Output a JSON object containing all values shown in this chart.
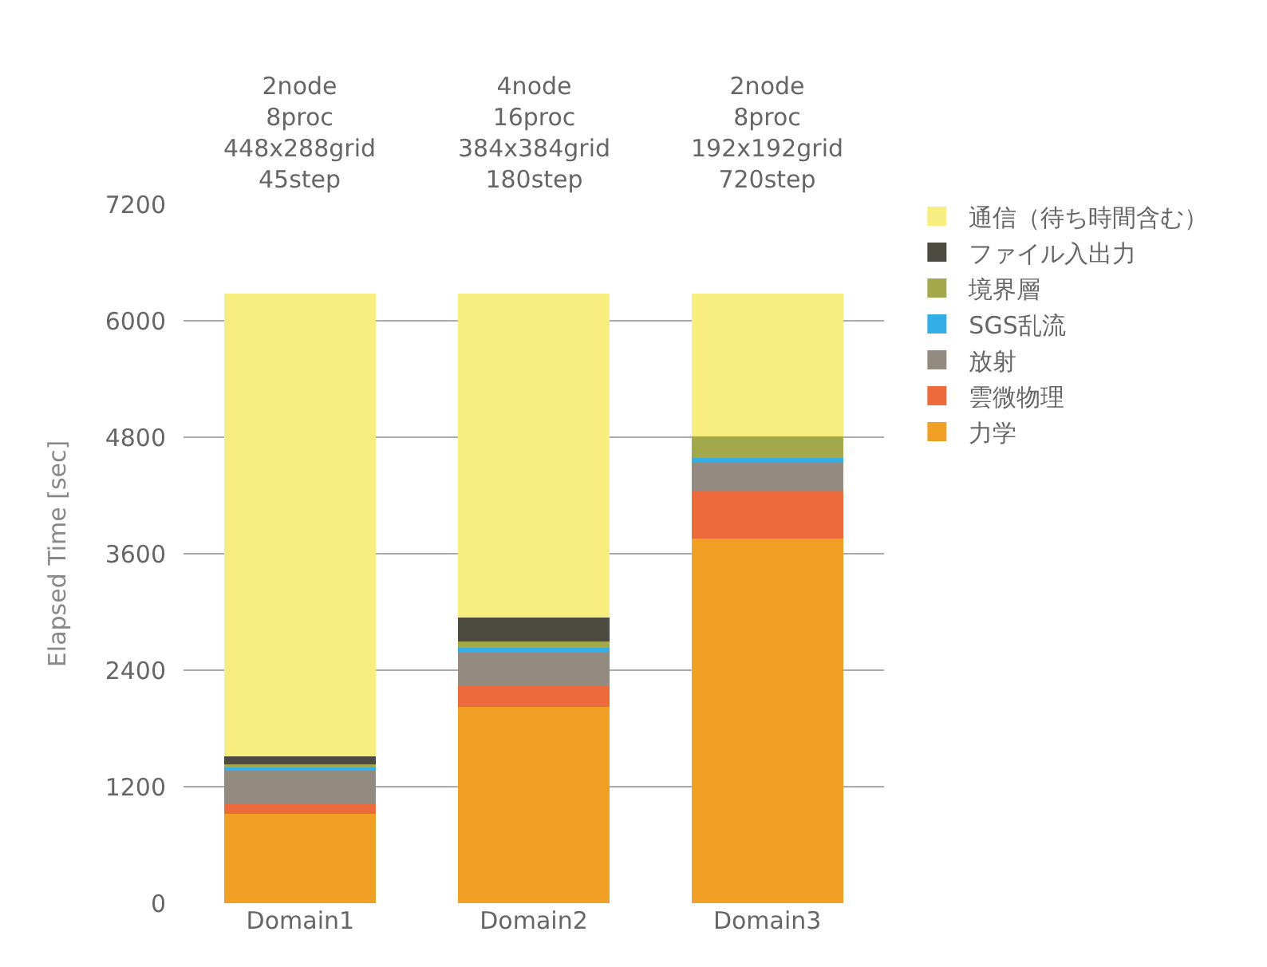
{
  "chart_data": {
    "type": "bar",
    "stacked": true,
    "categories": [
      "Domain1",
      "Domain2",
      "Domain3"
    ],
    "ylabel": "Elapsed Time [sec]",
    "ylim": [
      0,
      7200
    ],
    "yticks": [
      0,
      1200,
      2400,
      3600,
      4800,
      6000,
      7200
    ],
    "grid": "y",
    "legend": "top right",
    "annotations": [
      "2node\n8proc\n448x288grid\n45step",
      "4node\n16proc\n384x384grid\n180step",
      "2node\n8proc\n192x192grid\n720step"
    ],
    "series": [
      {
        "name": "力学",
        "color": "#f0a125",
        "values": [
          920,
          2020,
          3760
        ]
      },
      {
        "name": "雲微物理",
        "color": "#ec6a3c",
        "values": [
          100,
          220,
          480
        ]
      },
      {
        "name": "放射",
        "color": "#948b80",
        "values": [
          360,
          340,
          300
        ]
      },
      {
        "name": "SGS乱流",
        "color": "#33aee6",
        "values": [
          20,
          50,
          50
        ]
      },
      {
        "name": "境界層",
        "color": "#a3a84a",
        "values": [
          30,
          70,
          220
        ]
      },
      {
        "name": "ファイル入出力",
        "color": "#4d4a42",
        "values": [
          80,
          240,
          0
        ]
      },
      {
        "name": "通信（待ち時間含む）",
        "color": "#f7ee7f",
        "values": [
          4770,
          3340,
          1470
        ]
      }
    ]
  }
}
